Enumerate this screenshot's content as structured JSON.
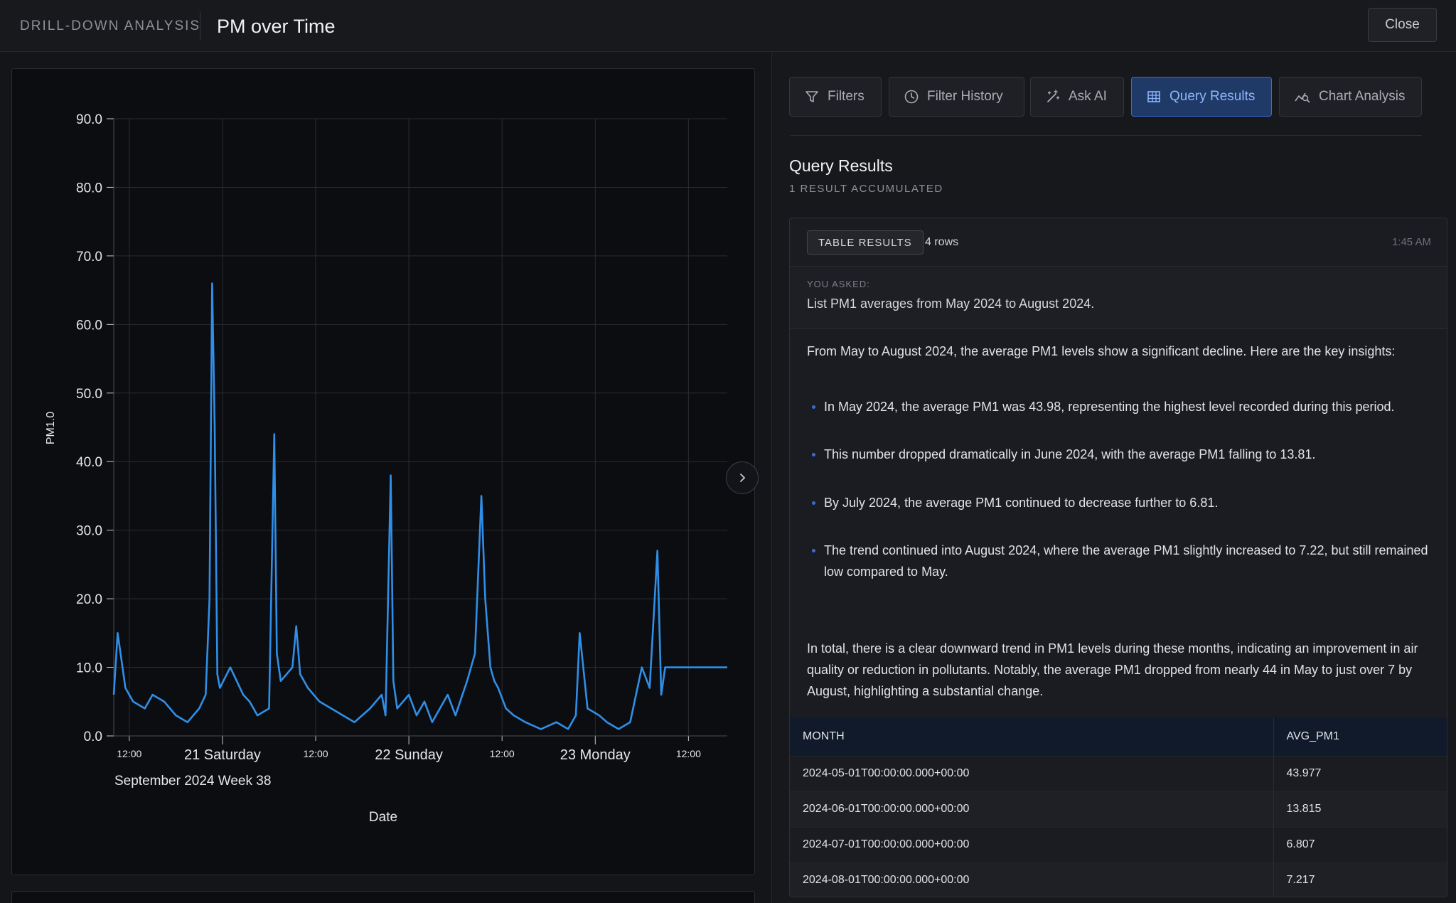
{
  "header": {
    "breadcrumb": "DRILL-DOWN ANALYSIS",
    "title": "PM over Time",
    "close_label": "Close"
  },
  "tabs": [
    {
      "label": "Filters",
      "icon": "filter-icon",
      "active": false
    },
    {
      "label": "Filter History",
      "icon": "clock-icon",
      "active": false
    },
    {
      "label": "Ask AI",
      "icon": "magic-wand-icon",
      "active": false
    },
    {
      "label": "Query Results",
      "icon": "table-icon",
      "active": true
    },
    {
      "label": "Chart Analysis",
      "icon": "chart-analysis-icon",
      "active": false
    }
  ],
  "query_results": {
    "title": "Query Results",
    "subtitle": "1 RESULT ACCUMULATED",
    "card": {
      "badge": "TABLE RESULTS",
      "rows_label": "4 rows",
      "timestamp": "1:45 AM",
      "asked_label": "YOU ASKED:",
      "question": "List PM1 averages from May 2024 to August 2024.",
      "intro": "From May to August 2024, the average PM1 levels show a significant decline. Here are the key insights:",
      "bullets": [
        "In May 2024, the average PM1 was 43.98, representing the highest level recorded during this period.",
        "This number dropped dramatically in June 2024, with the average PM1 falling to 13.81.",
        "By July 2024, the average PM1 continued to decrease further to 6.81.",
        "The trend continued into August 2024, where the average PM1 slightly increased to 7.22, but still remained low compared to May."
      ],
      "summary": "In total, there is a clear downward trend in PM1 levels during these months, indicating an improvement in air quality or reduction in pollutants. Notably, the average PM1 dropped from nearly 44 in May to just over 7 by August, highlighting a substantial change.",
      "columns": [
        "MONTH",
        "AVG_PM1"
      ],
      "rows": [
        [
          "2024-05-01T00:00:00.000+00:00",
          "43.977"
        ],
        [
          "2024-06-01T00:00:00.000+00:00",
          "13.815"
        ],
        [
          "2024-07-01T00:00:00.000+00:00",
          "6.807"
        ],
        [
          "2024-08-01T00:00:00.000+00:00",
          "7.217"
        ]
      ]
    }
  },
  "colors": {
    "accent": "#3a6bd4",
    "series": "#2f8fe8",
    "background": "#17181c"
  },
  "chart_data": {
    "type": "line",
    "title": "",
    "xlabel": "Date",
    "ylabel": "PM1.0",
    "ylim": [
      0,
      90
    ],
    "xlim": [
      "2024-09-20T10:00",
      "2024-09-23T17:00"
    ],
    "y_ticks": [
      "0.0",
      "10.0",
      "20.0",
      "30.0",
      "40.0",
      "50.0",
      "60.0",
      "70.0",
      "80.0",
      "90.0"
    ],
    "x_ticks": [
      {
        "x": "2024-09-20T12:00",
        "label": "12:00",
        "major": false
      },
      {
        "x": "2024-09-21T00:00",
        "label": "21 Saturday",
        "major": true
      },
      {
        "x": "2024-09-21T12:00",
        "label": "12:00",
        "major": false
      },
      {
        "x": "2024-09-22T00:00",
        "label": "22 Sunday",
        "major": true
      },
      {
        "x": "2024-09-22T12:00",
        "label": "12:00",
        "major": false
      },
      {
        "x": "2024-09-23T00:00",
        "label": "23 Monday",
        "major": true
      },
      {
        "x": "2024-09-23T12:00",
        "label": "12:00",
        "major": false
      }
    ],
    "x_sublabel": "September 2024 Week 38",
    "grid": true,
    "series": [
      {
        "x": [
          "2024-09-20T10:00",
          "2024-09-20T10:30",
          "2024-09-20T11:30",
          "2024-09-20T12:30",
          "2024-09-20T14:00",
          "2024-09-20T15:00",
          "2024-09-20T16:30",
          "2024-09-20T18:00",
          "2024-09-20T19:30",
          "2024-09-20T21:00",
          "2024-09-20T21:50",
          "2024-09-20T22:20",
          "2024-09-20T22:40",
          "2024-09-20T23:00",
          "2024-09-20T23:20",
          "2024-09-20T23:40",
          "2024-09-21T01:00",
          "2024-09-21T02:40",
          "2024-09-21T03:30",
          "2024-09-21T04:30",
          "2024-09-21T06:00",
          "2024-09-21T06:40",
          "2024-09-21T07:00",
          "2024-09-21T07:30",
          "2024-09-21T09:00",
          "2024-09-21T09:30",
          "2024-09-21T10:00",
          "2024-09-21T11:00",
          "2024-09-21T12:30",
          "2024-09-21T14:00",
          "2024-09-21T15:30",
          "2024-09-21T17:00",
          "2024-09-21T19:00",
          "2024-09-21T20:30",
          "2024-09-21T21:00",
          "2024-09-21T21:40",
          "2024-09-21T22:00",
          "2024-09-21T22:30",
          "2024-09-22T00:00",
          "2024-09-22T01:00",
          "2024-09-22T02:00",
          "2024-09-22T03:00",
          "2024-09-22T04:00",
          "2024-09-22T05:00",
          "2024-09-22T06:00",
          "2024-09-22T07:30",
          "2024-09-22T08:30",
          "2024-09-22T09:20",
          "2024-09-22T09:50",
          "2024-09-22T10:30",
          "2024-09-22T11:00",
          "2024-09-22T11:30",
          "2024-09-22T12:30",
          "2024-09-22T13:30",
          "2024-09-22T15:00",
          "2024-09-22T17:00",
          "2024-09-22T19:00",
          "2024-09-22T20:30",
          "2024-09-22T21:30",
          "2024-09-22T22:00",
          "2024-09-22T23:00",
          "2024-09-23T00:30",
          "2024-09-23T01:30",
          "2024-09-23T03:00",
          "2024-09-23T04:30",
          "2024-09-23T06:00",
          "2024-09-23T07:00",
          "2024-09-23T08:00",
          "2024-09-23T08:30",
          "2024-09-23T09:00",
          "2024-09-23T09:40",
          "2024-09-23T10:00",
          "2024-09-23T10:20",
          "2024-09-23T10:40",
          "2024-09-23T12:00",
          "2024-09-23T14:00",
          "2024-09-23T17:00"
        ],
        "y": [
          6,
          15,
          7,
          5,
          4,
          6,
          5,
          3,
          2,
          4,
          6,
          20,
          66,
          45,
          9,
          7,
          10,
          6,
          5,
          3,
          4,
          44,
          12,
          8,
          10,
          16,
          9,
          7,
          5,
          4,
          3,
          2,
          4,
          6,
          3,
          38,
          8,
          4,
          6,
          3,
          5,
          2,
          4,
          6,
          3,
          8,
          12,
          35,
          20,
          10,
          8,
          7,
          4,
          3,
          2,
          1,
          2,
          1,
          3,
          15,
          4,
          3,
          2,
          1,
          2,
          10,
          7,
          27,
          6,
          10,
          10,
          10,
          10,
          10,
          10,
          10,
          10
        ]
      }
    ]
  }
}
